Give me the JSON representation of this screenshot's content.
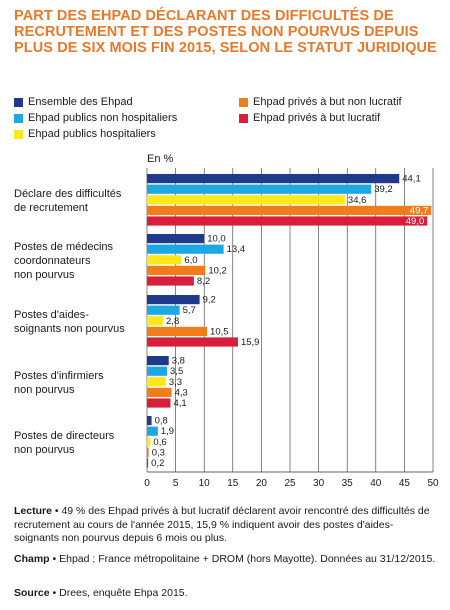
{
  "title": "PART DES EHPAD DÉCLARANT DES DIFFICULTÉS DE RECRUTEMENT ET DES POSTES NON POURVUS DEPUIS PLUS DE SIX MOIS FIN 2015, SELON LE STATUT JURIDIQUE",
  "notes": {
    "lecture_label": "Lecture",
    "lecture_text": " • 49 % des Ehpad privés à but lucratif déclarent avoir rencontré des difficultés de recrutement au cours de l'année 2015, 15,9 % indiquent avoir des postes d'aides-soignants non pourvus depuis 6 mois ou plus.",
    "champ_label": "Champ",
    "champ_text": " • Ehpad ; France métropolitaine + DROM (hors Mayotte). Données au 31/12/2015.",
    "source_label": "Source",
    "source_text": " • Drees, enquête Ehpa 2015."
  },
  "chart_data": {
    "type": "bar",
    "orientation": "horizontal",
    "unit_label": "En %",
    "xlim": [
      0,
      50
    ],
    "xticks": [
      "0",
      "5",
      "10",
      "15",
      "20",
      "25",
      "30",
      "35",
      "40",
      "45",
      "50"
    ],
    "grid": true,
    "categories": [
      [
        "Déclare des difficultés",
        "de recrutement"
      ],
      [
        "Postes de médecins",
        "coordonnateurs",
        "non pourvus"
      ],
      [
        "Postes d'aides-",
        "soignants non pourvus"
      ],
      [
        "Postes d'infirmiers",
        "non pourvus"
      ],
      [
        "Postes de directeurs",
        "non pourvus"
      ]
    ],
    "series": [
      {
        "name": "Ensemble des Ehpad",
        "color": "#1f3a8a",
        "values": [
          44.1,
          10.0,
          9.2,
          3.8,
          0.8
        ],
        "labels": [
          "44,1",
          "10,0",
          "9,2",
          "3,8",
          "0,8"
        ]
      },
      {
        "name": "Ehpad publics non hospitaliers",
        "color": "#1ca8e3",
        "values": [
          39.2,
          13.4,
          5.7,
          3.5,
          1.9
        ],
        "labels": [
          "39,2",
          "13,4",
          "5,7",
          "3,5",
          "1,9"
        ]
      },
      {
        "name": "Ehpad publics hospitaliers",
        "color": "#ffe81a",
        "values": [
          34.6,
          6.0,
          2.8,
          3.3,
          0.6
        ],
        "labels": [
          "34,6",
          "6,0",
          "2,8",
          "3,3",
          "0,6"
        ]
      },
      {
        "name": "Ehpad privés à but non lucratif",
        "color": "#ef7d1a",
        "values": [
          49.7,
          10.2,
          10.5,
          4.3,
          0.3
        ],
        "labels": [
          "49,7",
          "10,2",
          "10,5",
          "4,3",
          "0,3"
        ]
      },
      {
        "name": "Ehpad privés à but lucratif",
        "color": "#d71f3b",
        "values": [
          49.0,
          8.2,
          15.9,
          4.1,
          0.2
        ],
        "labels": [
          "49,0",
          "8,2",
          "15,9",
          "4,1",
          "0,2"
        ]
      }
    ],
    "legend_position": "top"
  }
}
